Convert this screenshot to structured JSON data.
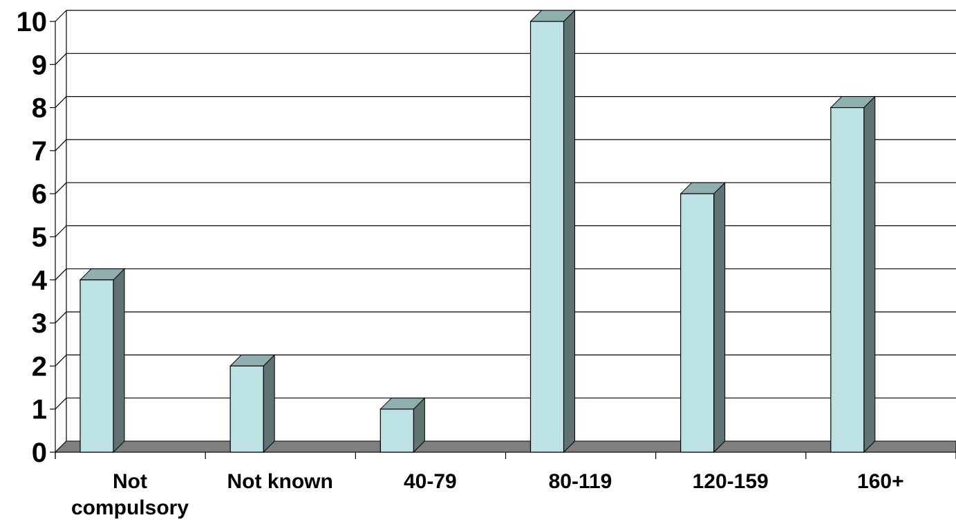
{
  "chart_data": {
    "type": "bar",
    "style": "3d-column",
    "title": "",
    "xlabel": "",
    "ylabel": "",
    "categories": [
      [
        "Not",
        "compulsory"
      ],
      [
        "Not known"
      ],
      [
        "40-79"
      ],
      [
        "80-119"
      ],
      [
        "120-159"
      ],
      [
        "160+"
      ]
    ],
    "values": [
      4,
      2,
      1,
      10,
      6,
      8
    ],
    "ylim": [
      0,
      10
    ],
    "yticks": [
      0,
      1,
      2,
      3,
      4,
      5,
      6,
      7,
      8,
      9,
      10
    ],
    "grid": true,
    "legend": "none",
    "colors": {
      "bar_front": "#BDE2E4",
      "bar_top": "#8FAFAF",
      "bar_side": "#5F7373",
      "floor": "#7F7F7F",
      "gridline": "#000000",
      "background": "#FFFFFF"
    }
  }
}
